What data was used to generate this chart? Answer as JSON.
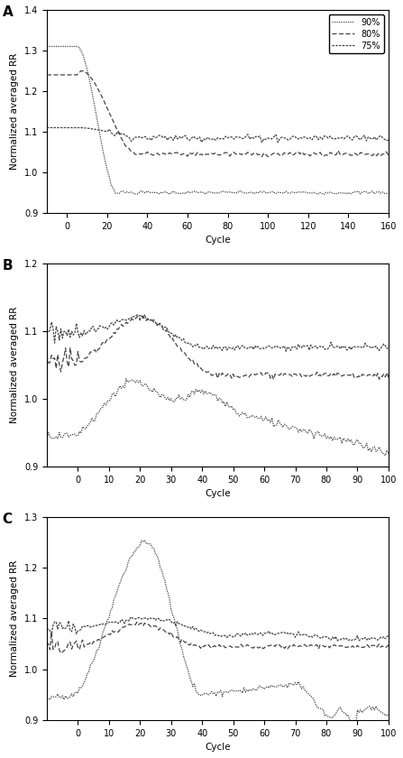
{
  "title_A": "A",
  "title_B": "B",
  "title_C": "C",
  "ylabel": "Normalized averaged RR",
  "xlabel": "Cycle",
  "legend_labels": [
    "90%",
    "80%",
    "75%"
  ],
  "panel_A": {
    "xlim": [
      -10,
      160
    ],
    "ylim": [
      0.9,
      1.4
    ],
    "xticks": [
      0,
      20,
      40,
      60,
      80,
      100,
      120,
      140,
      160
    ],
    "yticks": [
      0.9,
      1.0,
      1.1,
      1.2,
      1.3,
      1.4
    ]
  },
  "panel_B": {
    "xlim": [
      -10,
      100
    ],
    "ylim": [
      0.9,
      1.2
    ],
    "xticks": [
      0,
      10,
      20,
      30,
      40,
      50,
      60,
      70,
      80,
      90,
      100
    ],
    "yticks": [
      0.9,
      1.0,
      1.1,
      1.2
    ]
  },
  "panel_C": {
    "xlim": [
      -10,
      100
    ],
    "ylim": [
      0.9,
      1.3
    ],
    "xticks": [
      0,
      10,
      20,
      30,
      40,
      50,
      60,
      70,
      80,
      90,
      100
    ],
    "yticks": [
      0.9,
      1.0,
      1.1,
      1.2,
      1.3
    ]
  },
  "line_color": "#444444",
  "bg_color": "#ffffff"
}
